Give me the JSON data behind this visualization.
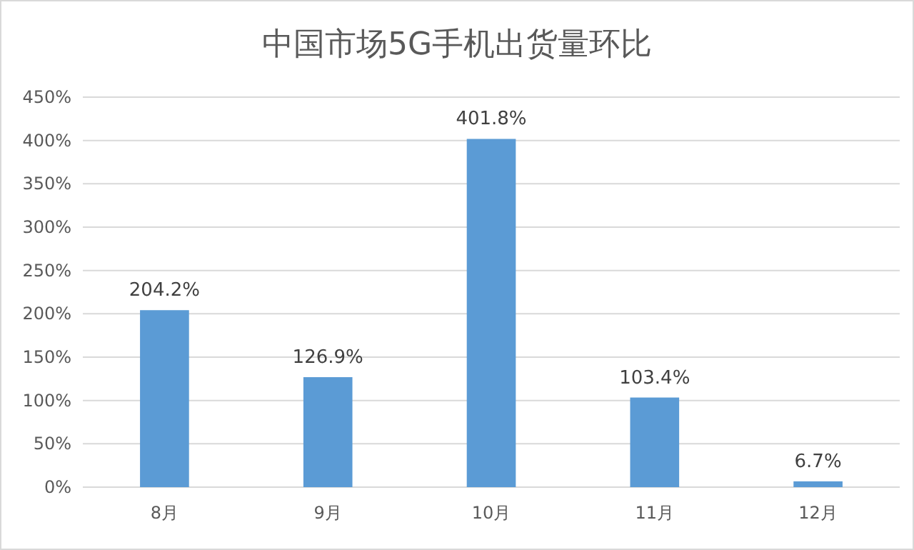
{
  "chart_data": {
    "type": "bar",
    "title": "中国市场5G手机出货量环比",
    "categories": [
      "8月",
      "9月",
      "10月",
      "11月",
      "12月"
    ],
    "values": [
      204.2,
      126.9,
      401.8,
      103.4,
      6.7
    ],
    "value_labels": [
      "204.2%",
      "126.9%",
      "401.8%",
      "103.4%",
      "6.7%"
    ],
    "color": "#5b9bd5",
    "ylim": [
      0,
      450
    ],
    "yticks": [
      {
        "value": 0,
        "label": "0%"
      },
      {
        "value": 50,
        "label": "50%"
      },
      {
        "value": 100,
        "label": "100%"
      },
      {
        "value": 150,
        "label": "150%"
      },
      {
        "value": 200,
        "label": "200%"
      },
      {
        "value": 250,
        "label": "250%"
      },
      {
        "value": 300,
        "label": "300%"
      },
      {
        "value": 350,
        "label": "350%"
      },
      {
        "value": 400,
        "label": "400%"
      },
      {
        "value": 450,
        "label": "450%"
      }
    ],
    "grid": "y"
  }
}
